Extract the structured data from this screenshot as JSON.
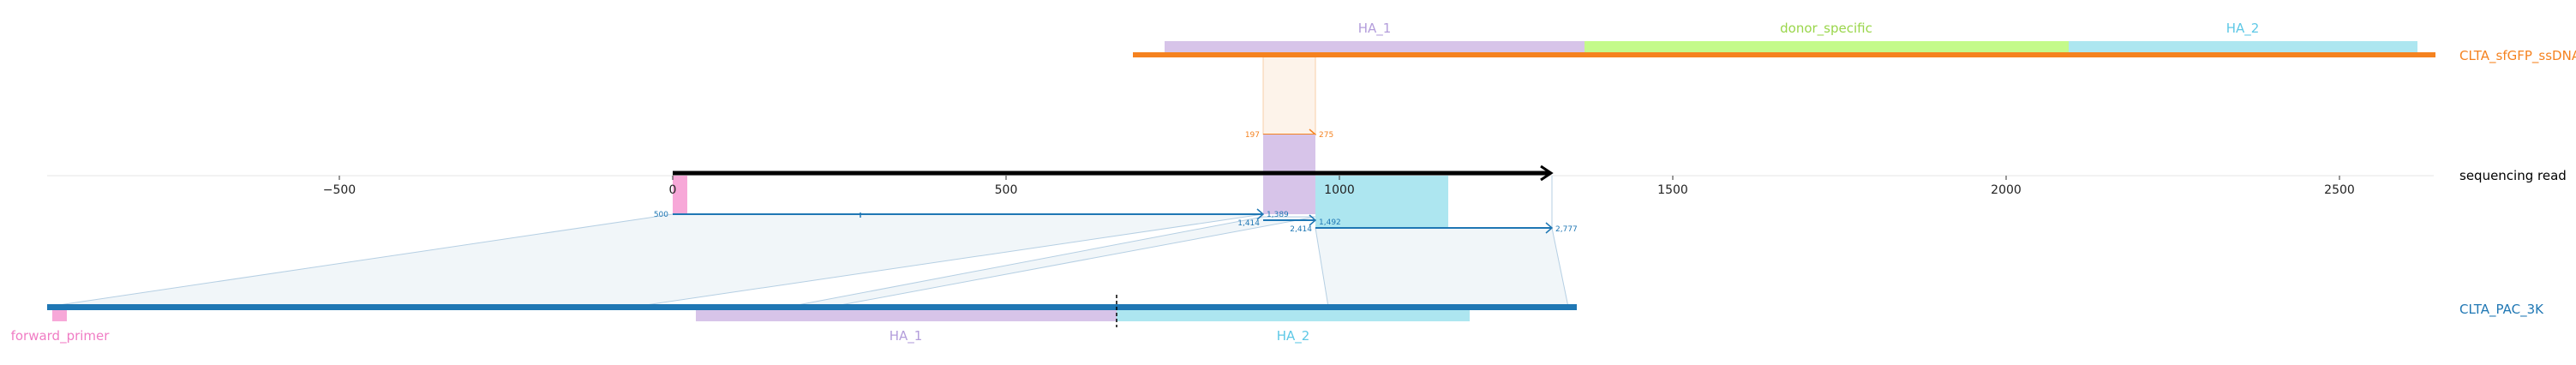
{
  "colors": {
    "ssdna_track": "#f5821f",
    "pac_track": "#1f77b4",
    "read_track": "#000000",
    "ha1": "#d7c4e9",
    "ha2": "#ade6f0",
    "donor_specific": "#c4fa8a",
    "forward_primer": "#f7a8d8",
    "ha1_text": "#b39ddb",
    "ha2_text": "#5ec8e6",
    "donor_text": "#9ad64b",
    "primer_text": "#f07cc4",
    "pac_label_text": "#1f77b4",
    "ssdna_label_text": "#f5821f",
    "read_label_text": "#000000"
  },
  "tracks": {
    "ssdna": {
      "label": "CLTA_sfGFP_ssDNA",
      "features": [
        {
          "name": "HA_1",
          "start": 740,
          "end": 1370,
          "color": "#d7c4e9",
          "text_color": "#b39ddb"
        },
        {
          "name": "donor_specific",
          "start": 1370,
          "end": 2100,
          "color": "#c4fa8a",
          "text_color": "#9ad64b"
        },
        {
          "name": "HA_2",
          "start": 2100,
          "end": 2625,
          "color": "#ade6f0",
          "text_color": "#5ec8e6"
        }
      ]
    },
    "read": {
      "label": "sequencing read",
      "features": [
        {
          "name": "",
          "start": 0,
          "end": 25,
          "color": "#f7a8d8"
        },
        {
          "name": "",
          "start": 887,
          "end": 963,
          "color": "#d7c4e9"
        },
        {
          "name": "",
          "start": 963,
          "end": 1165,
          "color": "#ade6f0"
        }
      ]
    },
    "pac": {
      "label": "CLTA_PAC_3K",
      "features": [
        {
          "name": "forward_primer",
          "start": 0,
          "end": 25,
          "color": "#f7a8d8",
          "text_color": "#f07cc4"
        },
        {
          "name": "HA_1",
          "start": 970,
          "end": 1600,
          "color": "#d7c4e9",
          "text_color": "#b39ddb"
        },
        {
          "name": "HA_2",
          "start": 1600,
          "end": 2130,
          "color": "#ade6f0",
          "text_color": "#5ec8e6"
        }
      ]
    }
  },
  "axis": {
    "ticks": [
      {
        "value": -500,
        "label": "−500"
      },
      {
        "value": 0,
        "label": "0"
      },
      {
        "value": 500,
        "label": "500"
      },
      {
        "value": 1000,
        "label": "1000"
      },
      {
        "value": 1500,
        "label": "1500"
      },
      {
        "value": 2000,
        "label": "2000"
      },
      {
        "value": 2500,
        "label": "2500"
      }
    ]
  },
  "alignments": [
    {
      "label": "ssdna-to-read",
      "ref_start": "197",
      "ref_end": "275",
      "color": "#f5821f"
    },
    {
      "label": "pac-to-read-1",
      "ref_start": "500",
      "ref_end": "1,389",
      "color": "#1f77b4"
    },
    {
      "label": "pac-to-read-2",
      "ref_start": "1,414",
      "ref_end": "1,492",
      "color": "#1f77b4"
    },
    {
      "label": "pac-to-read-3",
      "ref_start": "2,414",
      "ref_end": "2,777",
      "color": "#1f77b4"
    }
  ]
}
